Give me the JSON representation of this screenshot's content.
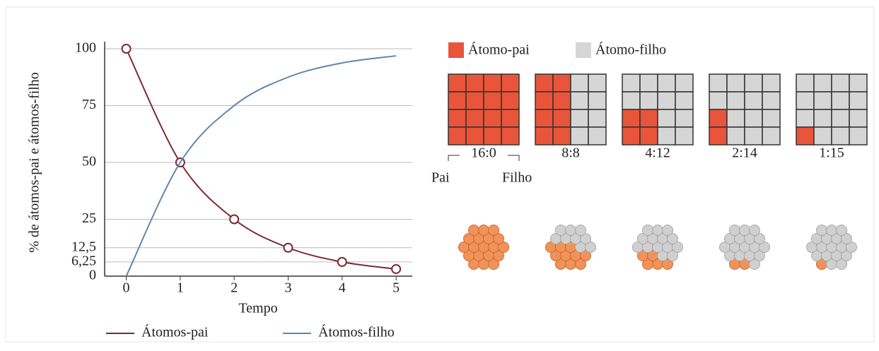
{
  "chart_data": {
    "type": "line",
    "y_label": "% de átomos-pai e átomos-filho",
    "x_label": "Tempo",
    "x": [
      0,
      1,
      2,
      3,
      4,
      5
    ],
    "series": [
      {
        "name": "Átomos-pai",
        "color": "#7a2a33",
        "values": [
          100,
          50,
          25,
          12.5,
          6.25,
          3.125
        ],
        "markers": true
      },
      {
        "name": "Átomos-filho",
        "color": "#5f86ad",
        "values": [
          0,
          50,
          75,
          87.5,
          93.75,
          96.875
        ],
        "markers": false
      }
    ],
    "xlim": [
      -0.4,
      5.3
    ],
    "xticks": [
      0,
      1,
      2,
      3,
      4,
      5
    ],
    "ylim": [
      0,
      100
    ],
    "yticks": [
      0,
      {
        "value": 6.25,
        "label": "6,25"
      },
      {
        "value": 12.5,
        "label": "12,5"
      },
      25,
      50,
      75,
      100
    ],
    "grid": true
  },
  "diagram": {
    "legend": [
      {
        "name": "Átomo-pai",
        "color": "#e8553a"
      },
      {
        "name": "Átomo-filho",
        "color": "#d6d6d6"
      }
    ],
    "grids": [
      {
        "label": "16:0",
        "pai": 16
      },
      {
        "label": "8:8",
        "pai": 8
      },
      {
        "label": "4:12",
        "pai": 4
      },
      {
        "label": "2:14",
        "pai": 2
      },
      {
        "label": "1:15",
        "pai": 1
      }
    ],
    "pai_label": "Pai",
    "filho_label": "Filho"
  }
}
